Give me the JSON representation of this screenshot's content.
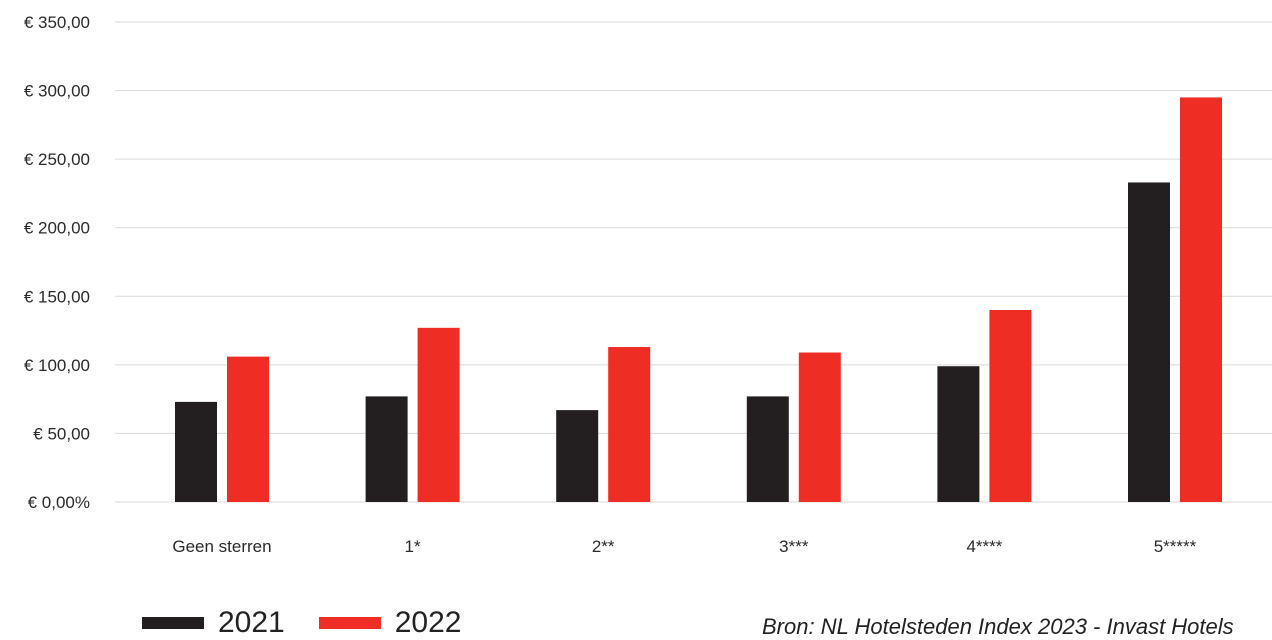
{
  "chart_data": {
    "type": "bar",
    "categories": [
      "Geen sterren",
      "1*",
      "2**",
      "3***",
      "4****",
      "5*****"
    ],
    "series": [
      {
        "name": "2021",
        "values": [
          73,
          77,
          67,
          77,
          99,
          233
        ]
      },
      {
        "name": "2022",
        "values": [
          106,
          127,
          113,
          109,
          140,
          295
        ]
      }
    ],
    "ylim": [
      0,
      350
    ],
    "yticks": [
      0,
      50,
      100,
      150,
      200,
      250,
      300,
      350
    ],
    "ytick_labels": [
      "€ 0,00%",
      "€ 50,00",
      "€ 100,00",
      "€ 150,00",
      "€ 200,00",
      "€ 250,00",
      "€ 300,00",
      "€ 350,00"
    ],
    "grid": true,
    "legend_position": "bottom-left"
  },
  "colors": {
    "2021": "#231f20",
    "2022": "#ee2e24",
    "grid": "#d9d9d9"
  },
  "source_text": "Bron: NL Hotelsteden Index 2023 - Invast Hotels"
}
